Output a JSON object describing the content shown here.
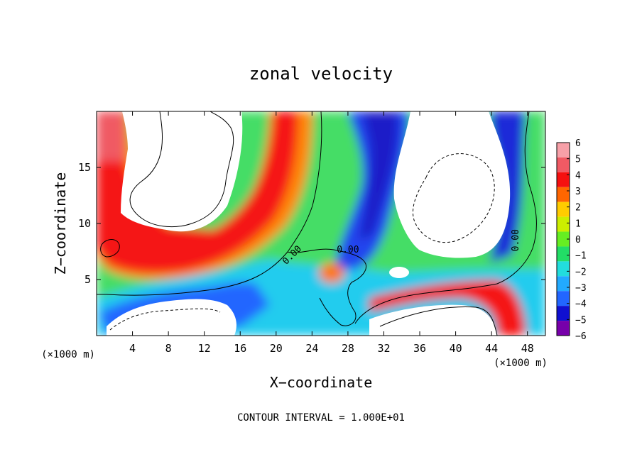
{
  "chart_data": {
    "type": "heatmap",
    "title": "zonal velocity",
    "xlabel": "X−coordinate",
    "ylabel": "Z−coordinate",
    "x_unit": "(×1000 m)",
    "y_unit": "(×1000 m)",
    "xlim": [
      0,
      50
    ],
    "ylim": [
      0,
      20
    ],
    "x_ticks": [
      4,
      8,
      12,
      16,
      20,
      24,
      28,
      32,
      36,
      40,
      44,
      48
    ],
    "y_ticks": [
      5,
      10,
      15
    ],
    "colorbar": {
      "levels": [
        6,
        5,
        4,
        3,
        2,
        1,
        0,
        -1,
        -2,
        -3,
        -4,
        -5,
        -6
      ],
      "labels": [
        "6",
        "5",
        "4",
        "3",
        "2",
        "1",
        "0",
        "−1",
        "−2",
        "−3",
        "−4",
        "−5",
        "−6"
      ],
      "colors": [
        "#f7a0a8",
        "#f05a64",
        "#f51010",
        "#ff6600",
        "#ffcc00",
        "#ccee00",
        "#66ee22",
        "#22dd66",
        "#22dddd",
        "#22aaff",
        "#2266ff",
        "#1010d0",
        "#7700aa"
      ]
    },
    "contour_labels": [
      {
        "text": "0.00",
        "x": 22,
        "z": 7
      },
      {
        "text": "0.00",
        "x": 28,
        "z": 7.4
      },
      {
        "text": "0.00",
        "x": 47,
        "z": 8.5
      }
    ],
    "footer": "CONTOUR INTERVAL = 1.000E+01"
  }
}
